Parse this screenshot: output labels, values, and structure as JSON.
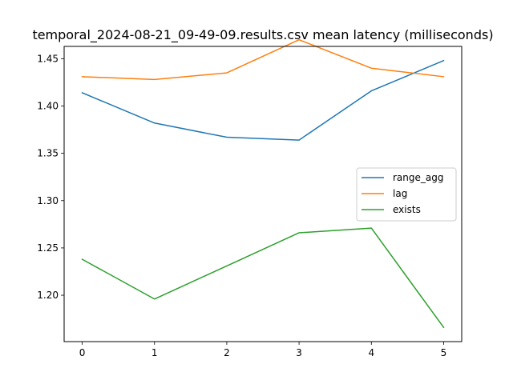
{
  "chart_data": {
    "type": "line",
    "title": "temporal_2024-08-21_09-49-09.results.csv mean latency (milliseconds)",
    "xlabel": "",
    "ylabel": "",
    "x": [
      0,
      1,
      2,
      3,
      4,
      5
    ],
    "xlim": [
      -0.25,
      5.25
    ],
    "ylim": [
      1.151,
      1.463
    ],
    "x_ticks": [
      0,
      1,
      2,
      3,
      4,
      5
    ],
    "x_tick_labels": [
      "0",
      "1",
      "2",
      "3",
      "4",
      "5"
    ],
    "y_ticks": [
      1.2,
      1.25,
      1.3,
      1.35,
      1.4,
      1.45
    ],
    "y_tick_labels": [
      "1.20",
      "1.25",
      "1.30",
      "1.35",
      "1.40",
      "1.45"
    ],
    "grid": false,
    "legend_position": "center-right",
    "series": [
      {
        "name": "range_agg",
        "color": "#1f77b4",
        "values": [
          1.414,
          1.382,
          1.367,
          1.364,
          1.416,
          1.448
        ]
      },
      {
        "name": "lag",
        "color": "#ff7f0e",
        "values": [
          1.431,
          1.428,
          1.435,
          1.47,
          1.44,
          1.431
        ]
      },
      {
        "name": "exists",
        "color": "#2ca02c",
        "values": [
          1.238,
          1.196,
          1.231,
          1.266,
          1.271,
          1.166
        ]
      }
    ]
  }
}
